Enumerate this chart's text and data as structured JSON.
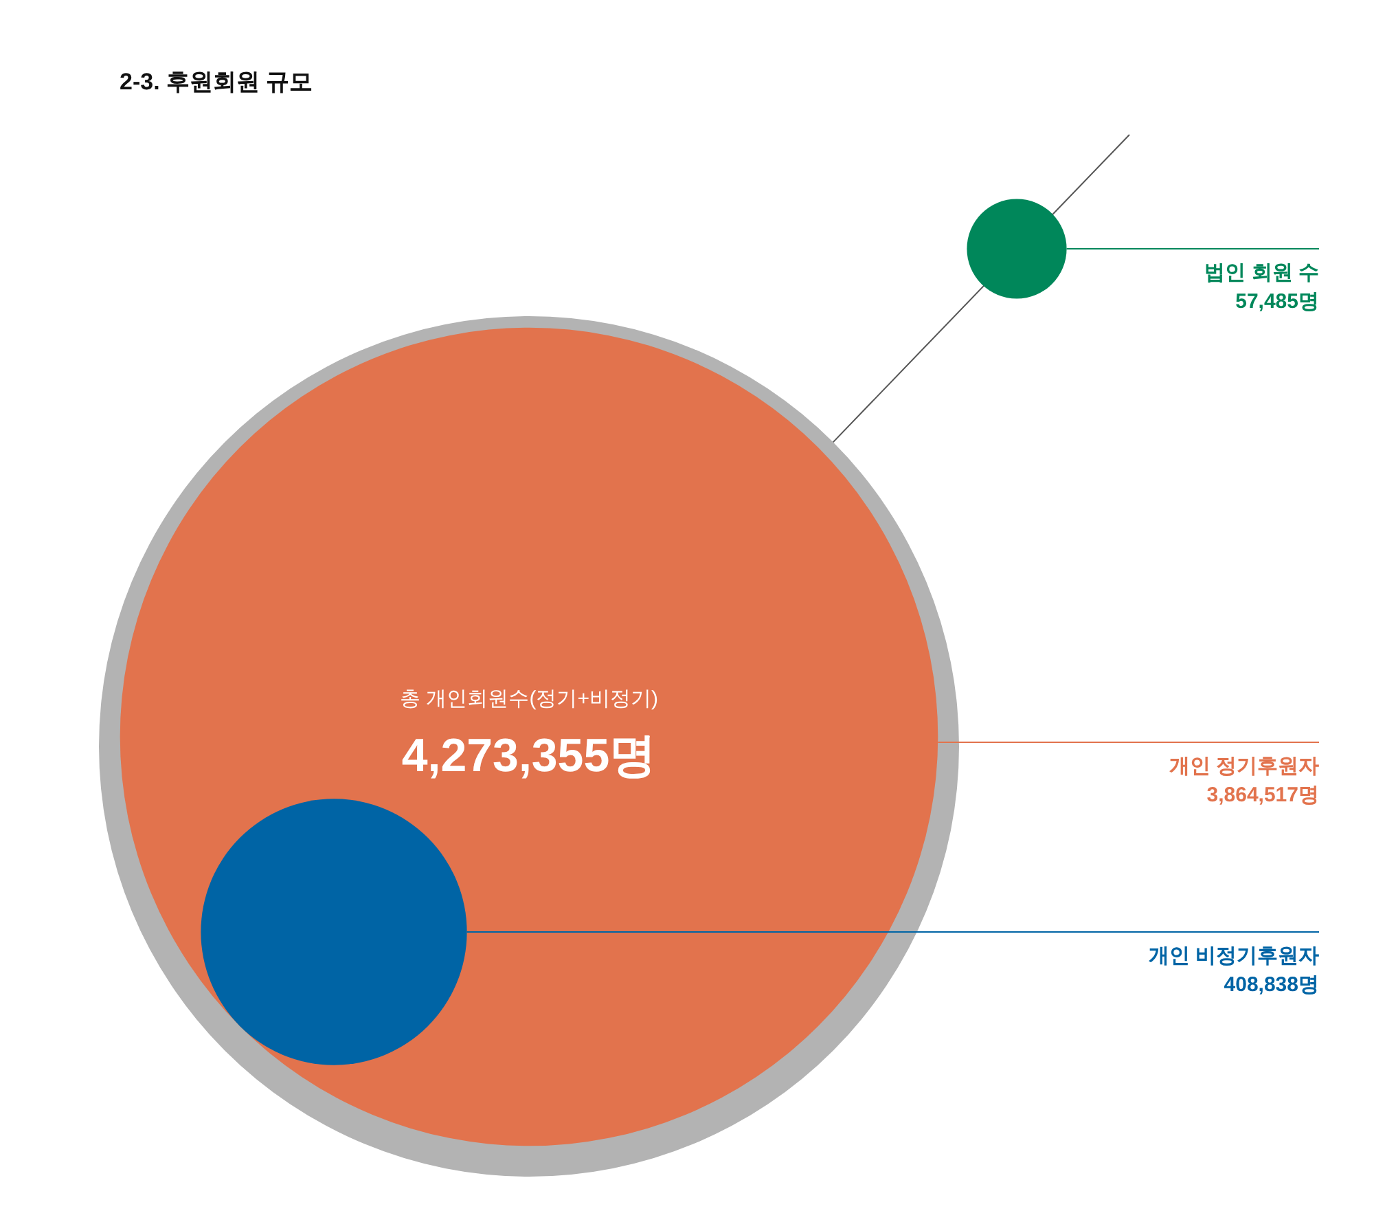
{
  "chart_data": {
    "type": "other",
    "title": "2-3. 후원회원 규모",
    "categories": [
      "개인 정기후원자",
      "개인 비정기후원자",
      "법인 회원 수"
    ],
    "values": [
      3864517,
      408838,
      57485
    ],
    "colors": [
      "#e2734d",
      "#0064a5",
      "#00875a"
    ],
    "value_labels": [
      "3,864,517명",
      "408,838명",
      "57,485명"
    ],
    "annotations": [
      "총 개인회원수(정기+비정기)",
      "4,273,355명"
    ]
  }
}
